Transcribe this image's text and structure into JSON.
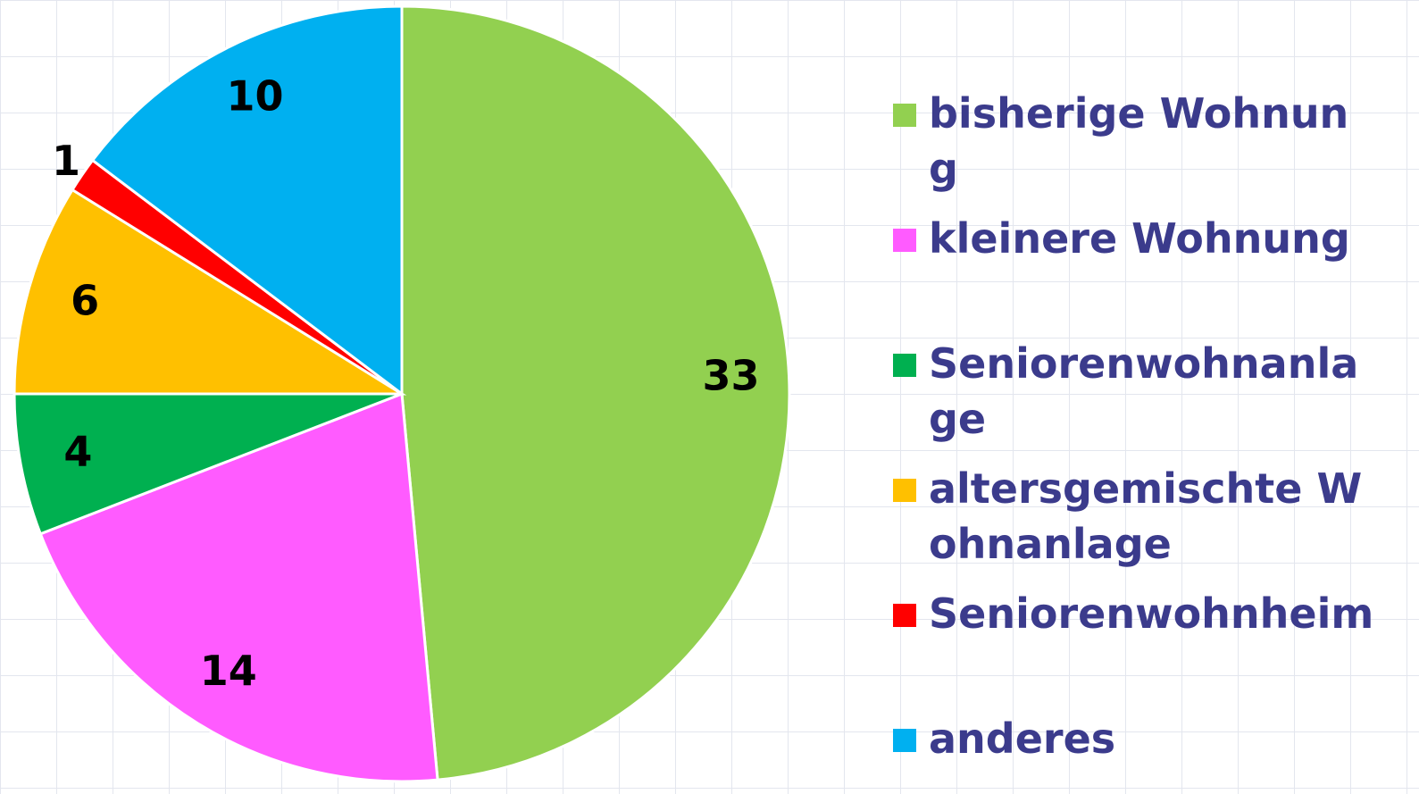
{
  "chart_data": {
    "type": "pie",
    "categories": [
      "bisherige Wohnung",
      "kleinere Wohnung",
      "Seniorenwohnanlage",
      "altersgemischte Wohnanlage",
      "Seniorenwohnheim",
      "anderes"
    ],
    "values": [
      33,
      14,
      4,
      6,
      1,
      10
    ],
    "colors": [
      "#92d050",
      "#ff5bff",
      "#00b050",
      "#ffc000",
      "#ff0000",
      "#00b0f0"
    ],
    "legend": "right"
  }
}
